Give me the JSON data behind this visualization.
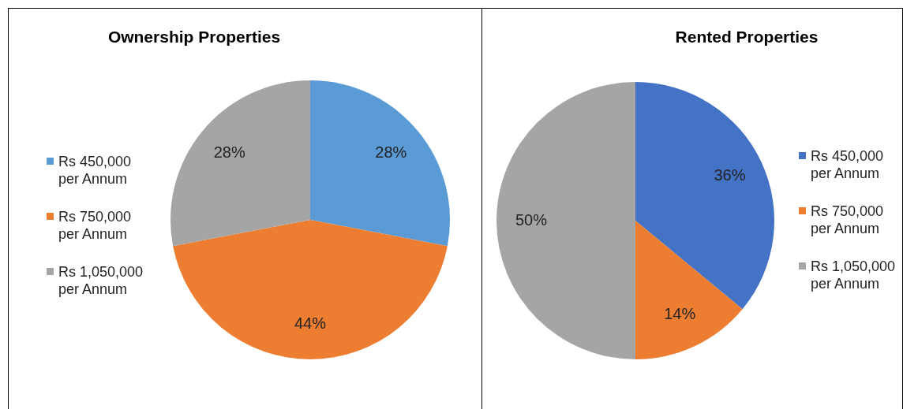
{
  "chart_data": [
    {
      "type": "pie",
      "title": "Ownership Properties",
      "categories": [
        "Rs 450,000 per Annum",
        "Rs 750,000 per Annum",
        "Rs 1,050,000 per Annum"
      ],
      "values": [
        28,
        44,
        28
      ],
      "colors": [
        "#5b9bd5",
        "#ed7d31",
        "#a5a5a5"
      ],
      "legend": "left",
      "value_labels": [
        "28%",
        "44%",
        "28%"
      ]
    },
    {
      "type": "pie",
      "title": "Rented Properties",
      "categories": [
        "Rs 450,000 per Annum",
        "Rs 750,000 per Annum",
        "Rs 1,050,000 per Annum"
      ],
      "values": [
        36,
        14,
        50
      ],
      "colors": [
        "#4472c4",
        "#ed7d31",
        "#a5a5a5"
      ],
      "legend": "right",
      "value_labels": [
        "36%",
        "14%",
        "50%"
      ]
    }
  ]
}
